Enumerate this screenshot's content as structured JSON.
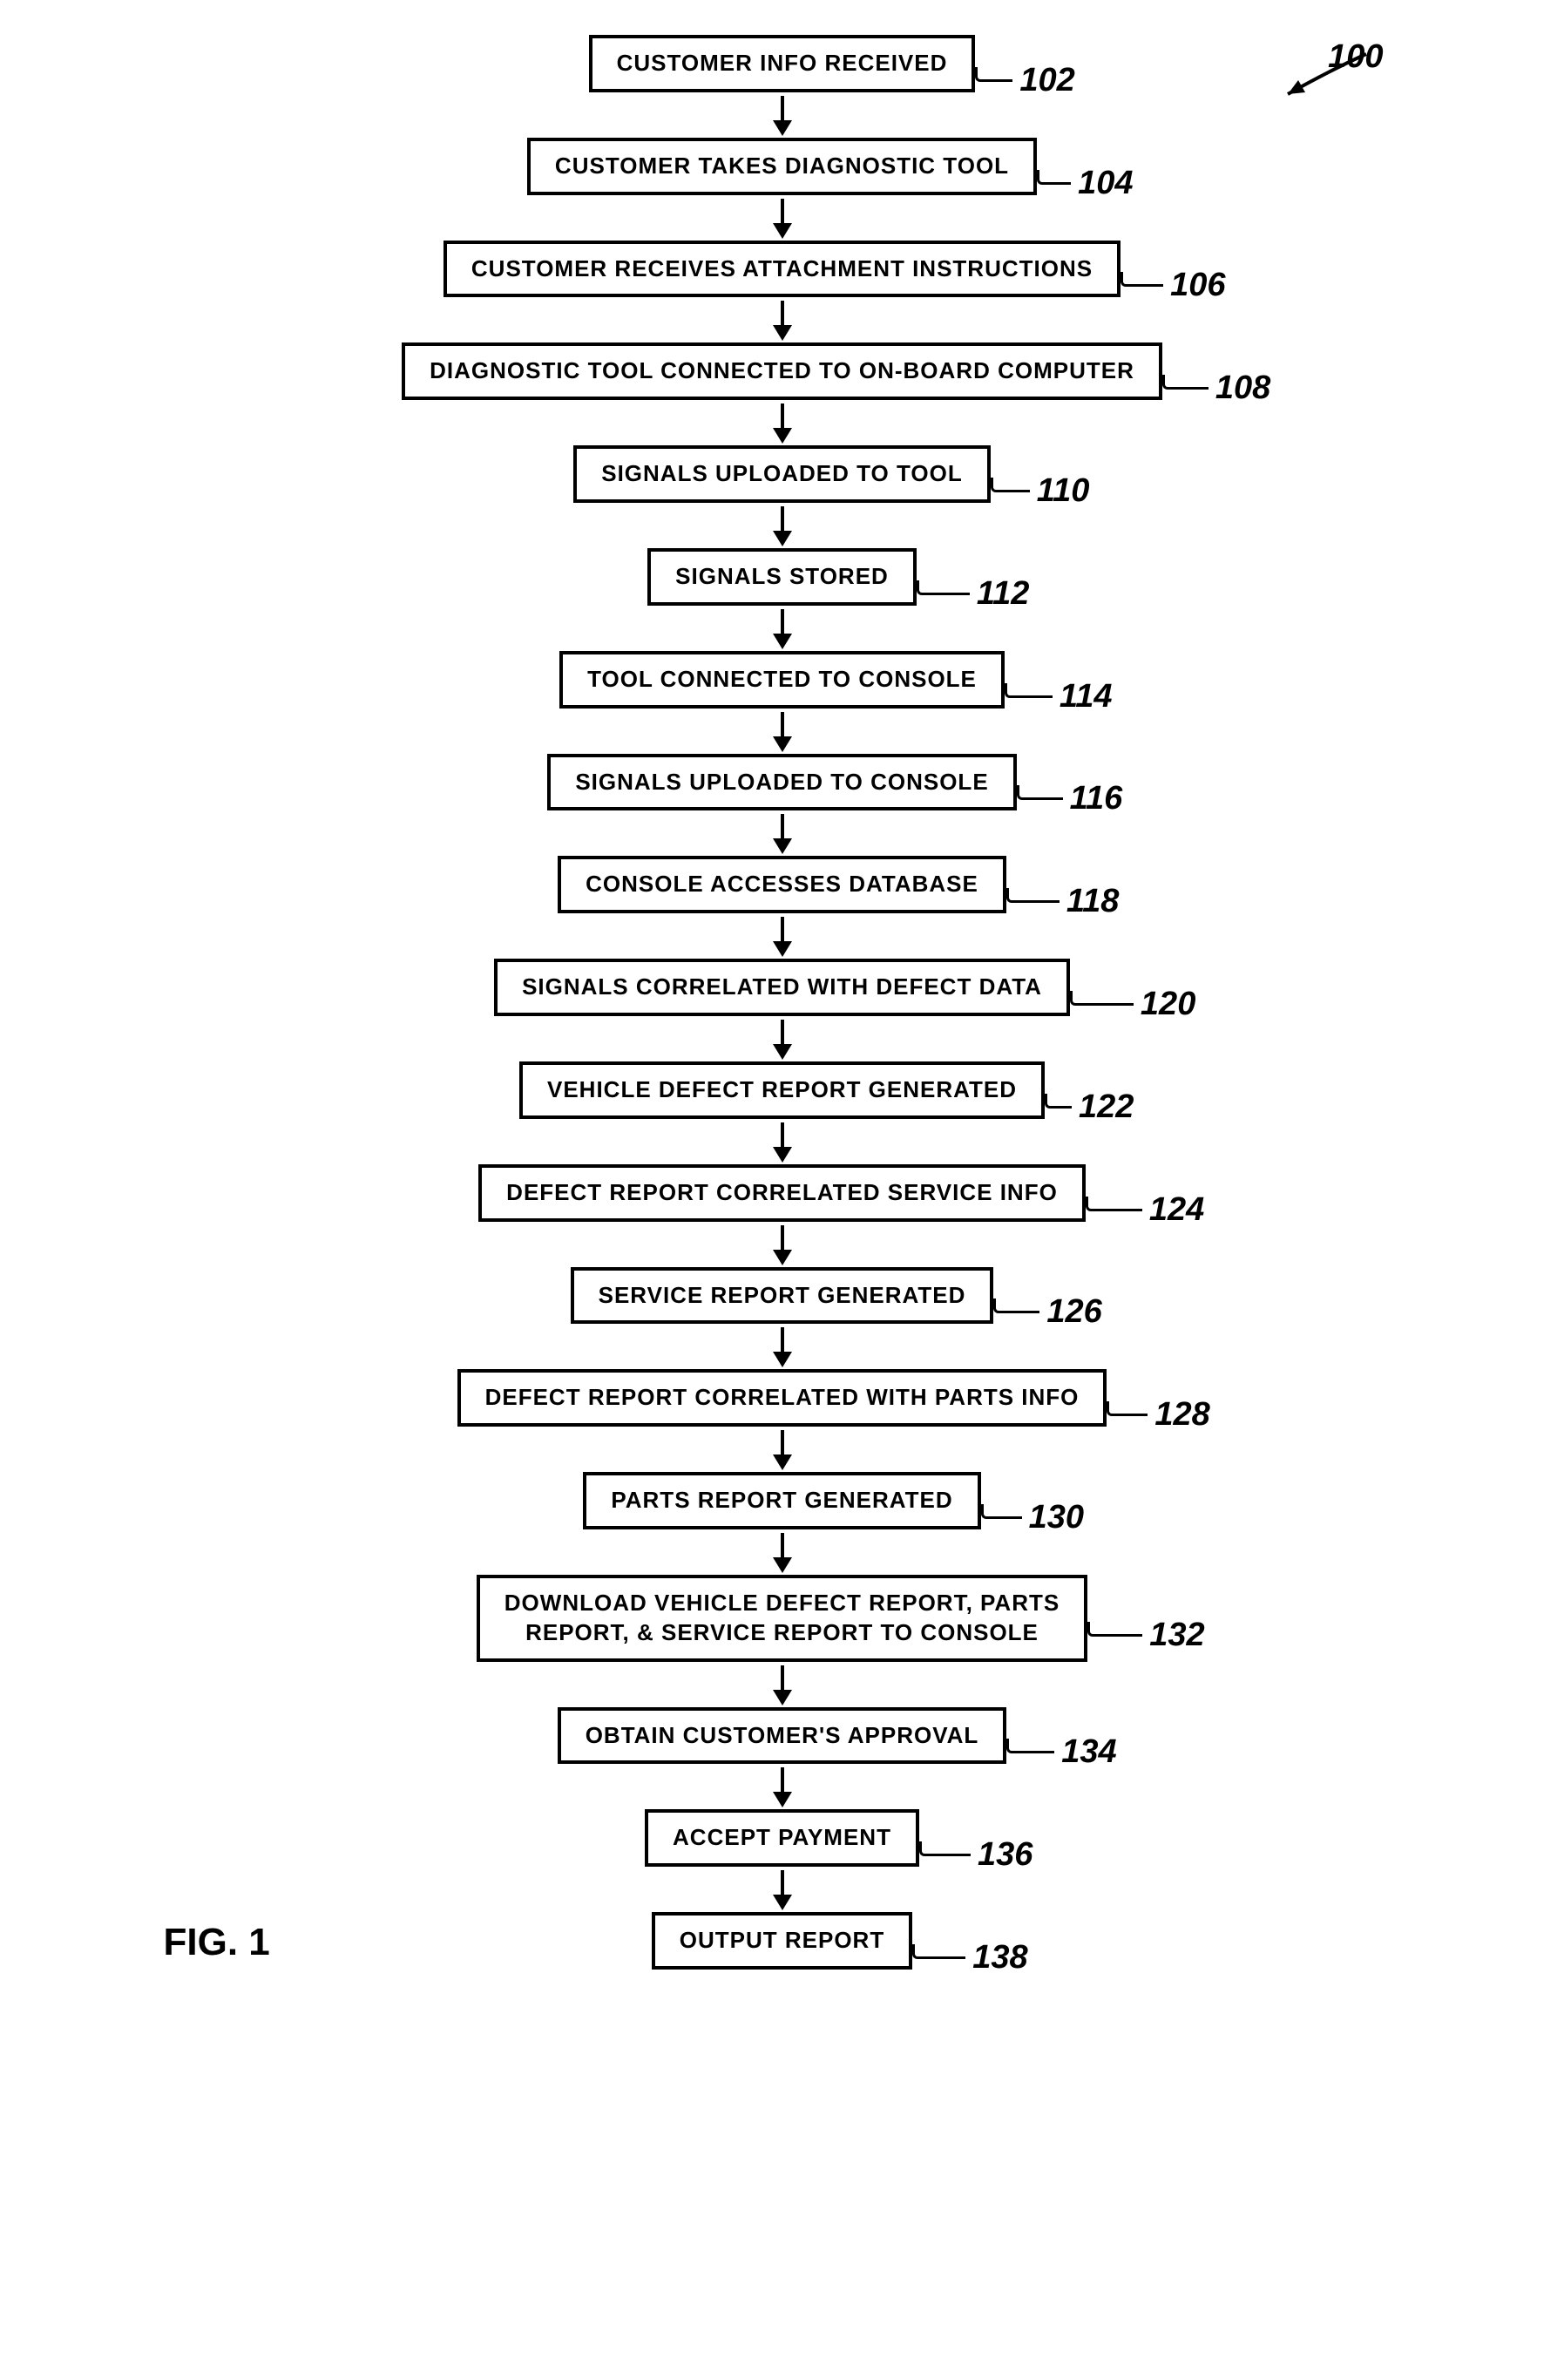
{
  "figure": {
    "label": "FIG. 1",
    "overall_ref": "100"
  },
  "style": {
    "box_border_color": "#000000",
    "box_border_width": 4,
    "background_color": "#ffffff",
    "text_color": "#000000",
    "box_fontsize": 26,
    "num_fontsize": 38,
    "fig_fontsize": 44,
    "arrow_shaft_len": 28,
    "arrow_head_w": 22,
    "arrow_head_h": 18,
    "lead_default_len": 30
  },
  "nodes": [
    {
      "id": "n102",
      "text": "CUSTOMER INFO RECEIVED",
      "ref": "102",
      "lead_len": 30
    },
    {
      "id": "n104",
      "text": "CUSTOMER TAKES DIAGNOSTIC TOOL",
      "ref": "104",
      "lead_len": 26
    },
    {
      "id": "n106",
      "text": "CUSTOMER RECEIVES ATTACHMENT INSTRUCTIONS",
      "ref": "106",
      "lead_len": 36
    },
    {
      "id": "n108",
      "text": "DIAGNOSTIC TOOL CONNECTED TO ON-BOARD COMPUTER",
      "ref": "108",
      "lead_len": 40
    },
    {
      "id": "n110",
      "text": "SIGNALS UPLOADED TO TOOL",
      "ref": "110",
      "lead_len": 32
    },
    {
      "id": "n112",
      "text": "SIGNALS STORED",
      "ref": "112",
      "lead_len": 48
    },
    {
      "id": "n114",
      "text": "TOOL CONNECTED TO CONSOLE",
      "ref": "114",
      "lead_len": 42
    },
    {
      "id": "n116",
      "text": "SIGNALS UPLOADED TO CONSOLE",
      "ref": "116",
      "lead_len": 40
    },
    {
      "id": "n118",
      "text": "CONSOLE ACCESSES DATABASE",
      "ref": "118",
      "lead_len": 48
    },
    {
      "id": "n120",
      "text": "SIGNALS CORRELATED WITH DEFECT DATA",
      "ref": "120",
      "lead_len": 60
    },
    {
      "id": "n122",
      "text": "VEHICLE DEFECT REPORT GENERATED",
      "ref": "122",
      "lead_len": 18
    },
    {
      "id": "n124",
      "text": "DEFECT REPORT CORRELATED SERVICE INFO",
      "ref": "124",
      "lead_len": 52
    },
    {
      "id": "n126",
      "text": "SERVICE REPORT GENERATED",
      "ref": "126",
      "lead_len": 40
    },
    {
      "id": "n128",
      "text": "DEFECT REPORT CORRELATED WITH PARTS INFO",
      "ref": "128",
      "lead_len": 34
    },
    {
      "id": "n130",
      "text": "PARTS REPORT GENERATED",
      "ref": "130",
      "lead_len": 34
    },
    {
      "id": "n132",
      "text": "DOWNLOAD VEHICLE DEFECT REPORT, PARTS\nREPORT, & SERVICE REPORT TO CONSOLE",
      "ref": "132",
      "lead_len": 50
    },
    {
      "id": "n134",
      "text": "OBTAIN CUSTOMER'S APPROVAL",
      "ref": "134",
      "lead_len": 42
    },
    {
      "id": "n136",
      "text": "ACCEPT PAYMENT",
      "ref": "136",
      "lead_len": 46
    },
    {
      "id": "n138",
      "text": "OUTPUT REPORT",
      "ref": "138",
      "lead_len": 48
    }
  ]
}
